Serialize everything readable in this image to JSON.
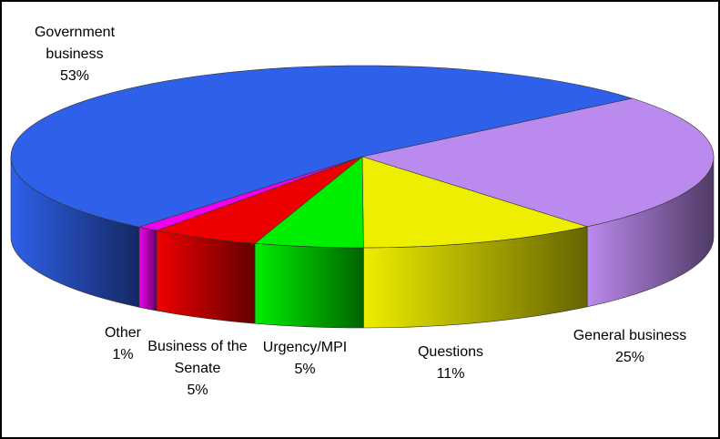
{
  "chart_data": {
    "type": "pie3d",
    "categories": [
      "Government business",
      "General business",
      "Questions",
      "Urgency/MPI",
      "Business of the Senate",
      "Other"
    ],
    "values": [
      53,
      25,
      11,
      5,
      5,
      1
    ],
    "value_labels": [
      "53%",
      "25%",
      "11%",
      "5%",
      "5%",
      "1%"
    ],
    "colors": [
      "#2f60ea",
      "#bb8aee",
      "#eeee00",
      "#00ee00",
      "#ee0000",
      "#ee00ee"
    ]
  }
}
